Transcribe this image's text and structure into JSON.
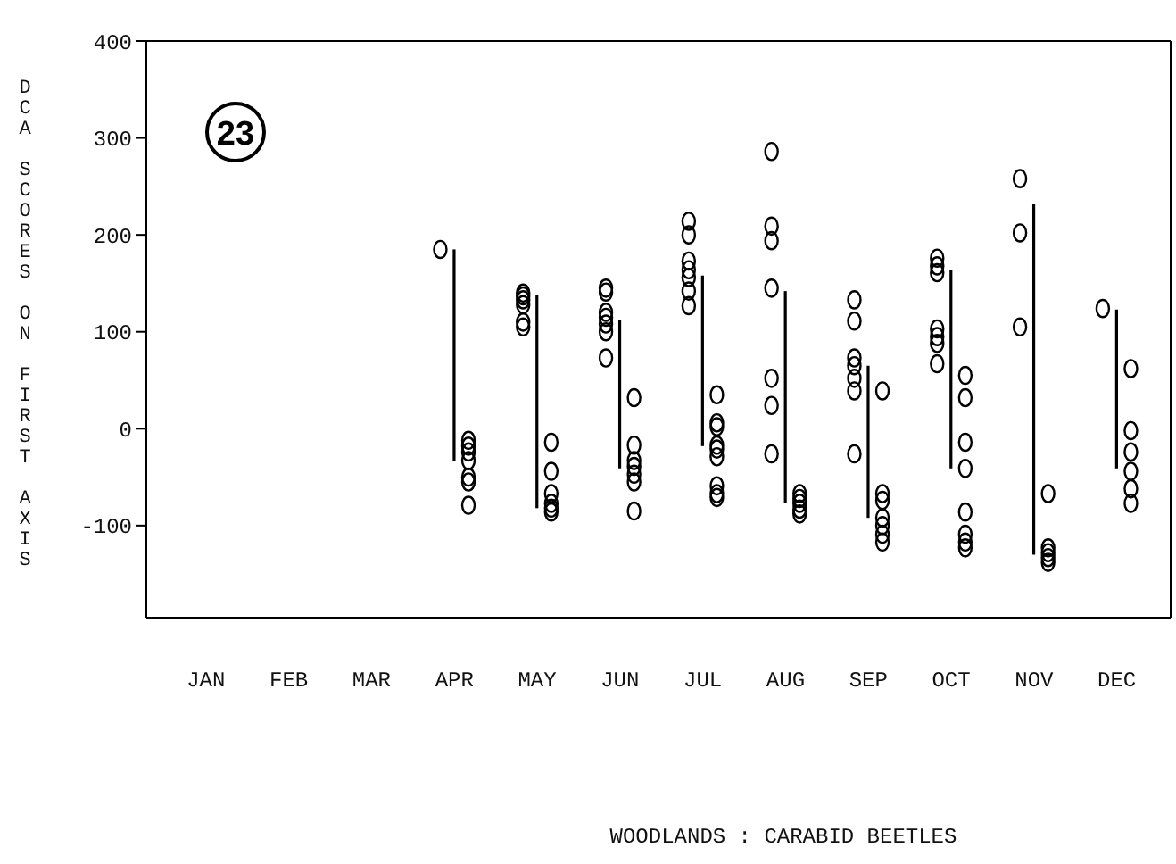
{
  "chart_data": {
    "type": "scatter",
    "ylabel": "DCA SCORES ON FIRST AXIS",
    "annotations": [
      "23",
      "WOODLANDS : CARABID BEETLES"
    ],
    "categories": [
      "JAN",
      "FEB",
      "MAR",
      "APR",
      "MAY",
      "JUN",
      "JUL",
      "AUG",
      "SEP",
      "OCT",
      "NOV",
      "DEC"
    ],
    "ylim": [
      -195,
      400
    ],
    "yticks": [
      -100,
      0,
      100,
      200,
      300,
      400
    ],
    "grid": false,
    "legend": false,
    "marker": "circle",
    "series": [
      {
        "color": "#000000",
        "x": [
          "APR",
          "MAY",
          "MAY",
          "MAY",
          "MAY",
          "MAY",
          "MAY",
          "JUN",
          "JUN",
          "JUN",
          "JUN",
          "JUN",
          "JUN",
          "JUN",
          "JUL",
          "JUL",
          "JUL",
          "JUL",
          "JUL",
          "JUL",
          "JUL",
          "AUG",
          "AUG",
          "AUG",
          "AUG",
          "AUG",
          "AUG",
          "AUG",
          "SEP",
          "SEP",
          "SEP",
          "SEP",
          "SEP",
          "SEP",
          "SEP",
          "OCT",
          "OCT",
          "OCT",
          "OCT",
          "OCT",
          "OCT",
          "OCT",
          "NOV",
          "NOV",
          "NOV",
          "DEC"
        ],
        "values": [
          185,
          140,
          137,
          133,
          128,
          110,
          105,
          145,
          141,
          120,
          115,
          108,
          100,
          73,
          214,
          200,
          173,
          164,
          156,
          142,
          127,
          286,
          209,
          194,
          145,
          52,
          24,
          -26,
          133,
          111,
          73,
          65,
          52,
          39,
          -26,
          176,
          168,
          161,
          103,
          95,
          88,
          67,
          258,
          202,
          105,
          124
        ]
      },
      {
        "type": "bar",
        "color": "#000000",
        "base": [
          null,
          null,
          null,
          -33,
          -82,
          -41,
          -18,
          -77,
          -92,
          -41,
          -130,
          -41
        ],
        "values": [
          null,
          null,
          null,
          218,
          220,
          153,
          176,
          219,
          157,
          205,
          362,
          164
        ]
      },
      {
        "color": "#000000",
        "x": [
          "APR",
          "APR",
          "APR",
          "APR",
          "APR",
          "APR",
          "APR",
          "MAY",
          "MAY",
          "MAY",
          "MAY",
          "MAY",
          "MAY",
          "JUN",
          "JUN",
          "JUN",
          "JUN",
          "JUN",
          "JUN",
          "JUN",
          "JUL",
          "JUL",
          "JUL",
          "JUL",
          "JUL",
          "JUL",
          "JUL",
          "JUL",
          "JUL",
          "AUG",
          "AUG",
          "AUG",
          "AUG",
          "AUG",
          "SEP",
          "SEP",
          "SEP",
          "SEP",
          "SEP",
          "SEP",
          "SEP",
          "OCT",
          "OCT",
          "OCT",
          "OCT",
          "OCT",
          "OCT",
          "OCT",
          "OCT",
          "NOV",
          "NOV",
          "NOV",
          "NOV",
          "NOV",
          "DEC",
          "DEC",
          "DEC",
          "DEC",
          "DEC",
          "DEC"
        ],
        "values": [
          -12,
          -18,
          -24,
          -33,
          -50,
          -55,
          -79,
          -14,
          -44,
          -67,
          -77,
          -82,
          -86,
          32,
          -17,
          -33,
          -39,
          -47,
          -55,
          -85,
          35,
          6,
          2,
          -17,
          -21,
          -29,
          -59,
          -67,
          -71,
          -67,
          -72,
          -77,
          -83,
          -88,
          39,
          -67,
          -74,
          -92,
          -100,
          -109,
          -117,
          55,
          32,
          -14,
          -41,
          -86,
          -109,
          -117,
          -123,
          -67,
          -123,
          -128,
          -133,
          -138,
          62,
          -2,
          -24,
          -44,
          -62,
          -77
        ]
      }
    ]
  }
}
